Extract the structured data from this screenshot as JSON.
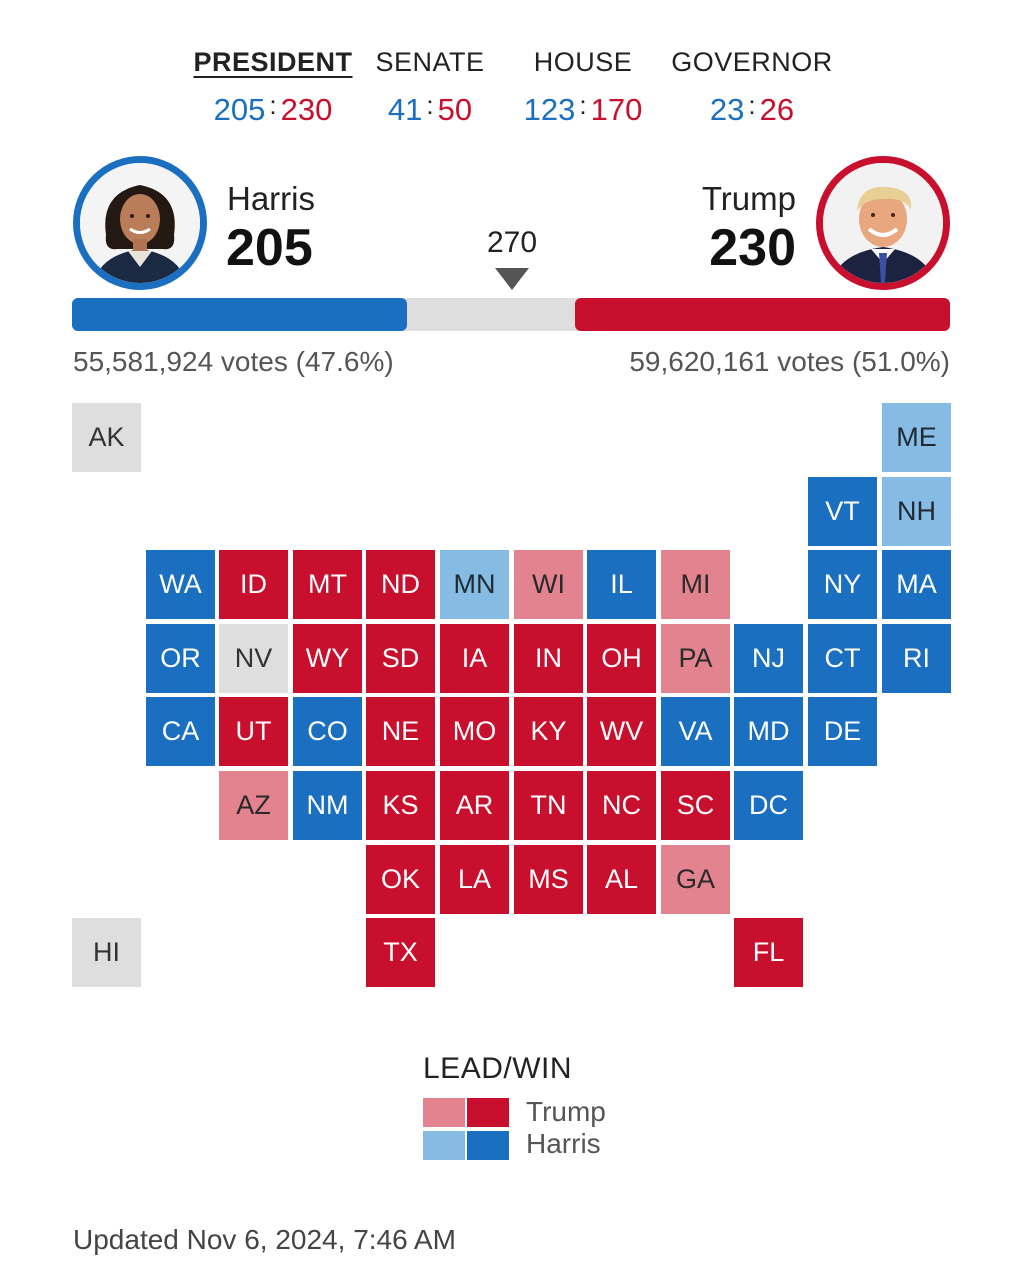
{
  "tabs": [
    {
      "label": "PRESIDENT",
      "dem": "205",
      "rep": "230"
    },
    {
      "label": "SENATE",
      "dem": "41",
      "rep": "50"
    },
    {
      "label": "HOUSE",
      "dem": "123",
      "rep": "170"
    },
    {
      "label": "GOVERNOR",
      "dem": "23",
      "rep": "26"
    }
  ],
  "score_separator": ":",
  "candidates": {
    "harris": {
      "name": "Harris",
      "electoral": "205",
      "popular": "55,581,924 votes (47.6%)",
      "color": "#1a6fc0"
    },
    "trump": {
      "name": "Trump",
      "electoral": "230",
      "popular": "59,620,161 votes (51.0%)",
      "color": "#c8102e"
    }
  },
  "threshold": "270",
  "electoral_total": 538,
  "colors": {
    "trump_win": "#c8102e",
    "trump_lead": "#e2838f",
    "harris_win": "#1a6fc0",
    "harris_lead": "#86bbe4",
    "no_result": "#dedede"
  },
  "states": [
    {
      "abbr": "AK",
      "status": "none"
    },
    {
      "abbr": "ME",
      "status": "d-lead"
    },
    {
      "abbr": "VT",
      "status": "d-win"
    },
    {
      "abbr": "NH",
      "status": "d-lead"
    },
    {
      "abbr": "WA",
      "status": "d-win"
    },
    {
      "abbr": "ID",
      "status": "r-win"
    },
    {
      "abbr": "MT",
      "status": "r-win"
    },
    {
      "abbr": "ND",
      "status": "r-win"
    },
    {
      "abbr": "MN",
      "status": "d-lead"
    },
    {
      "abbr": "WI",
      "status": "r-lead"
    },
    {
      "abbr": "IL",
      "status": "d-win"
    },
    {
      "abbr": "MI",
      "status": "r-lead"
    },
    {
      "abbr": "NY",
      "status": "d-win"
    },
    {
      "abbr": "MA",
      "status": "d-win"
    },
    {
      "abbr": "OR",
      "status": "d-win"
    },
    {
      "abbr": "NV",
      "status": "none"
    },
    {
      "abbr": "WY",
      "status": "r-win"
    },
    {
      "abbr": "SD",
      "status": "r-win"
    },
    {
      "abbr": "IA",
      "status": "r-win"
    },
    {
      "abbr": "IN",
      "status": "r-win"
    },
    {
      "abbr": "OH",
      "status": "r-win"
    },
    {
      "abbr": "PA",
      "status": "r-lead"
    },
    {
      "abbr": "NJ",
      "status": "d-win"
    },
    {
      "abbr": "CT",
      "status": "d-win"
    },
    {
      "abbr": "RI",
      "status": "d-win"
    },
    {
      "abbr": "CA",
      "status": "d-win"
    },
    {
      "abbr": "UT",
      "status": "r-win"
    },
    {
      "abbr": "CO",
      "status": "d-win"
    },
    {
      "abbr": "NE",
      "status": "r-win"
    },
    {
      "abbr": "MO",
      "status": "r-win"
    },
    {
      "abbr": "KY",
      "status": "r-win"
    },
    {
      "abbr": "WV",
      "status": "r-win"
    },
    {
      "abbr": "VA",
      "status": "d-win"
    },
    {
      "abbr": "MD",
      "status": "d-win"
    },
    {
      "abbr": "DE",
      "status": "d-win"
    },
    {
      "abbr": "AZ",
      "status": "r-lead"
    },
    {
      "abbr": "NM",
      "status": "d-win"
    },
    {
      "abbr": "KS",
      "status": "r-win"
    },
    {
      "abbr": "AR",
      "status": "r-win"
    },
    {
      "abbr": "TN",
      "status": "r-win"
    },
    {
      "abbr": "NC",
      "status": "r-win"
    },
    {
      "abbr": "SC",
      "status": "r-win"
    },
    {
      "abbr": "DC",
      "status": "d-win"
    },
    {
      "abbr": "OK",
      "status": "r-win"
    },
    {
      "abbr": "LA",
      "status": "r-win"
    },
    {
      "abbr": "MS",
      "status": "r-win"
    },
    {
      "abbr": "AL",
      "status": "r-win"
    },
    {
      "abbr": "GA",
      "status": "r-lead"
    },
    {
      "abbr": "HI",
      "status": "none"
    },
    {
      "abbr": "TX",
      "status": "r-win"
    },
    {
      "abbr": "FL",
      "status": "r-win"
    }
  ],
  "legend": {
    "title": "LEAD/WIN",
    "trump_label": "Trump",
    "harris_label": "Harris"
  },
  "updated": "Updated Nov 6, 2024, 7:46 AM"
}
